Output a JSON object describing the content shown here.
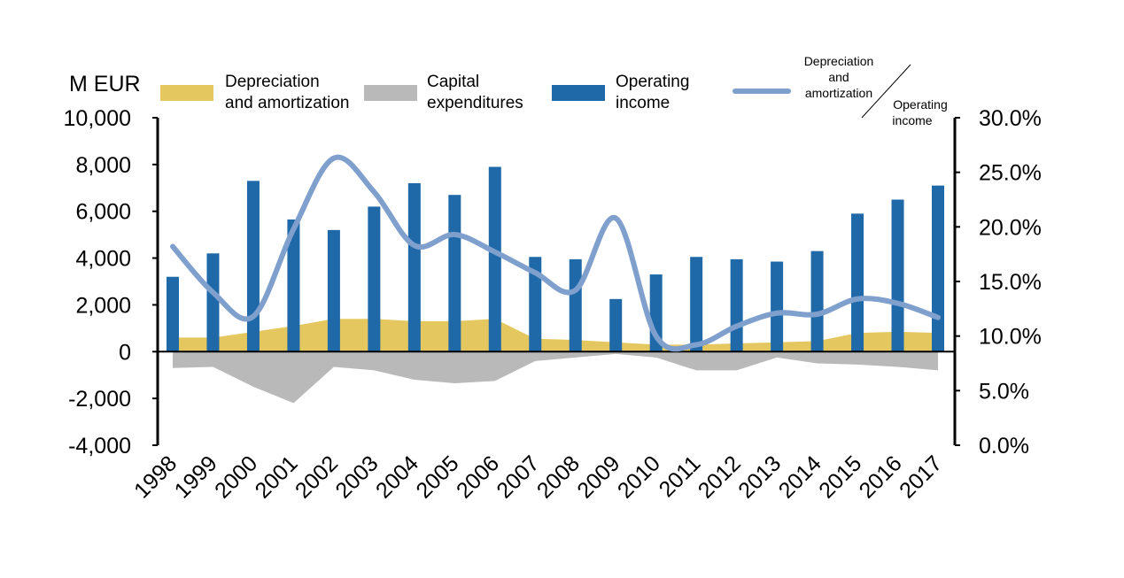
{
  "chart_data": {
    "type": "bar",
    "categories": [
      "1998",
      "1999",
      "2000",
      "2001",
      "2002",
      "2003",
      "2004",
      "2005",
      "2006",
      "2007",
      "2008",
      "2009",
      "2010",
      "2011",
      "2012",
      "2013",
      "2014",
      "2015",
      "2016",
      "2017"
    ],
    "series": [
      {
        "name": "Depreciation and amortization",
        "type": "area",
        "axis": "left",
        "values": [
          600,
          600,
          850,
          1100,
          1400,
          1400,
          1300,
          1300,
          1400,
          550,
          500,
          400,
          300,
          300,
          350,
          400,
          450,
          800,
          850,
          800
        ]
      },
      {
        "name": "Capital expenditures",
        "type": "area",
        "axis": "left",
        "values": [
          -700,
          -650,
          -1500,
          -2200,
          -650,
          -800,
          -1200,
          -1350,
          -1250,
          -400,
          -250,
          -100,
          -250,
          -800,
          -800,
          -250,
          -500,
          -550,
          -650,
          -800
        ]
      },
      {
        "name": "Operating income",
        "type": "bar",
        "axis": "left",
        "values": [
          3200,
          4200,
          7300,
          5650,
          5200,
          6200,
          7200,
          6700,
          7900,
          4050,
          3950,
          2250,
          3300,
          4050,
          3950,
          3850,
          4300,
          5900,
          6500,
          7100
        ]
      },
      {
        "name": "Depreciation and amortization / Operating income",
        "type": "line",
        "axis": "right",
        "values": [
          18.2,
          14.0,
          11.8,
          19.8,
          26.3,
          23.2,
          18.3,
          19.3,
          17.7,
          15.8,
          14.2,
          20.8,
          10.0,
          9.2,
          10.9,
          12.1,
          12.0,
          13.4,
          13.0,
          11.7
        ]
      }
    ],
    "yunit": "M EUR",
    "ylim": [
      -4000,
      10000
    ],
    "yticks": [
      "10,000",
      "8,000",
      "6,000",
      "4,000",
      "2,000",
      "0",
      "-2,000",
      "-4,000"
    ],
    "ylim_right": [
      0,
      30
    ],
    "yticks_right": [
      "30.0%",
      "25.0%",
      "20.0%",
      "15.0%",
      "10.0%",
      "5.0%",
      "0.0%"
    ],
    "grid": false,
    "legend_position": "top",
    "colors": {
      "depreciation": "#e5c760",
      "capex": "#b9b9b9",
      "operating_income": "#1f69a8",
      "ratio_line": "#7f9fcd"
    }
  },
  "legend": {
    "depreciation_line1": "Depreciation",
    "depreciation_line2": "and amortization",
    "capex_line1": "Capital",
    "capex_line2": "expenditures",
    "income_line1": "Operating",
    "income_line2": "income",
    "ratio_num_line1": "Depreciation",
    "ratio_num_line2": "and",
    "ratio_num_line3": "amortization",
    "ratio_den_line1": "Operating",
    "ratio_den_line2": "income"
  }
}
